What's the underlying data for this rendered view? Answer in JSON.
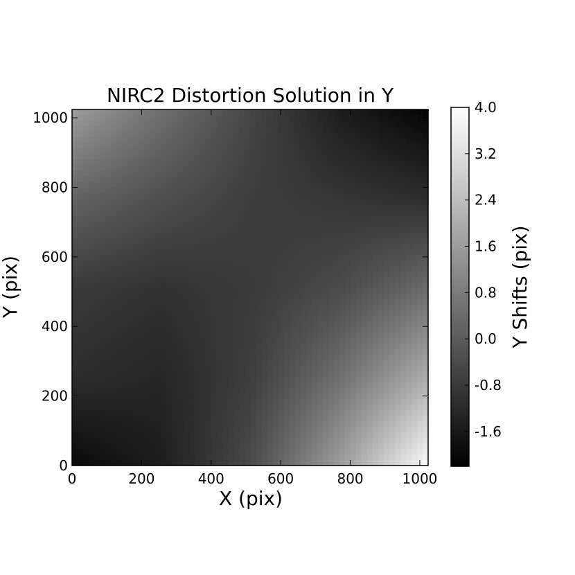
{
  "chart_data": {
    "type": "heatmap",
    "title": "NIRC2 Distortion Solution in Y",
    "xlabel": "X (pix)",
    "ylabel": "Y (pix)",
    "xlim": [
      0,
      1024
    ],
    "ylim": [
      0,
      1024
    ],
    "x_ticks": [
      0,
      200,
      400,
      600,
      800,
      1000
    ],
    "y_ticks": [
      0,
      200,
      400,
      600,
      800,
      1000
    ],
    "colormap": "gray",
    "colorbar": {
      "label": "Y Shifts (pix)",
      "range": [
        -2.2,
        4.0
      ],
      "ticks": [
        4.0,
        3.2,
        2.4,
        1.6,
        0.8,
        0.0,
        -0.8,
        -1.6
      ],
      "tick_labels": [
        "4.0",
        "3.2",
        "2.4",
        "1.6",
        "0.8",
        "0.0",
        "-0.8",
        "-1.6"
      ]
    },
    "sample_grid": {
      "x": [
        0,
        256,
        512,
        768,
        1024
      ],
      "y": [
        0,
        256,
        512,
        768,
        1024
      ],
      "z": [
        [
          -2.0,
          -1.5,
          -0.4,
          1.6,
          3.9
        ],
        [
          -1.1,
          -1.3,
          -0.7,
          0.5,
          2.0
        ],
        [
          -0.8,
          -1.0,
          -0.8,
          -0.4,
          0.4
        ],
        [
          0.2,
          -0.3,
          -0.7,
          -0.9,
          -1.1
        ],
        [
          1.6,
          0.5,
          -0.5,
          -1.5,
          -2.1
        ]
      ]
    }
  }
}
